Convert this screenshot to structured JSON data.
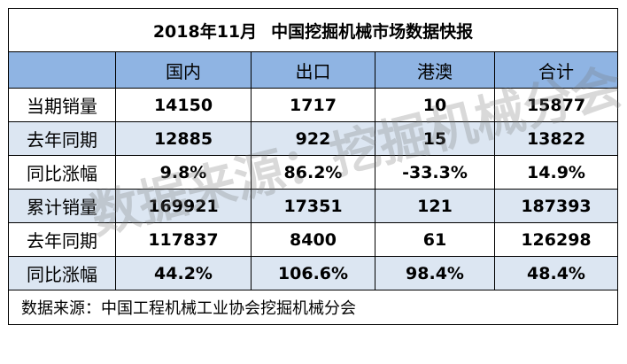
{
  "title": {
    "part1": "2018年11月",
    "part2": "中国挖掘机械市场数据快报"
  },
  "columns": [
    "",
    "国内",
    "出口",
    "港澳",
    "合计"
  ],
  "rows": [
    {
      "label": "当期销量",
      "values": [
        "14150",
        "1717",
        "10",
        "15877"
      ]
    },
    {
      "label": "去年同期",
      "values": [
        "12885",
        "922",
        "15",
        "13822"
      ]
    },
    {
      "label": "同比涨幅",
      "values": [
        "9.8%",
        "86.2%",
        "-33.3%",
        "14.9%"
      ]
    },
    {
      "label": "累计销量",
      "values": [
        "169921",
        "17351",
        "121",
        "187393"
      ]
    },
    {
      "label": "去年同期",
      "values": [
        "117837",
        "8400",
        "61",
        "126298"
      ]
    },
    {
      "label": "同比涨幅",
      "values": [
        "44.2%",
        "106.6%",
        "98.4%",
        "48.4%"
      ]
    }
  ],
  "source": "数据来源：中国工程机械工业协会挖掘机械分会",
  "watermark": "数据来源：挖掘机械分会",
  "colors": {
    "header_bg": "#8fb4e3",
    "band_bg": "#dce6f2"
  }
}
